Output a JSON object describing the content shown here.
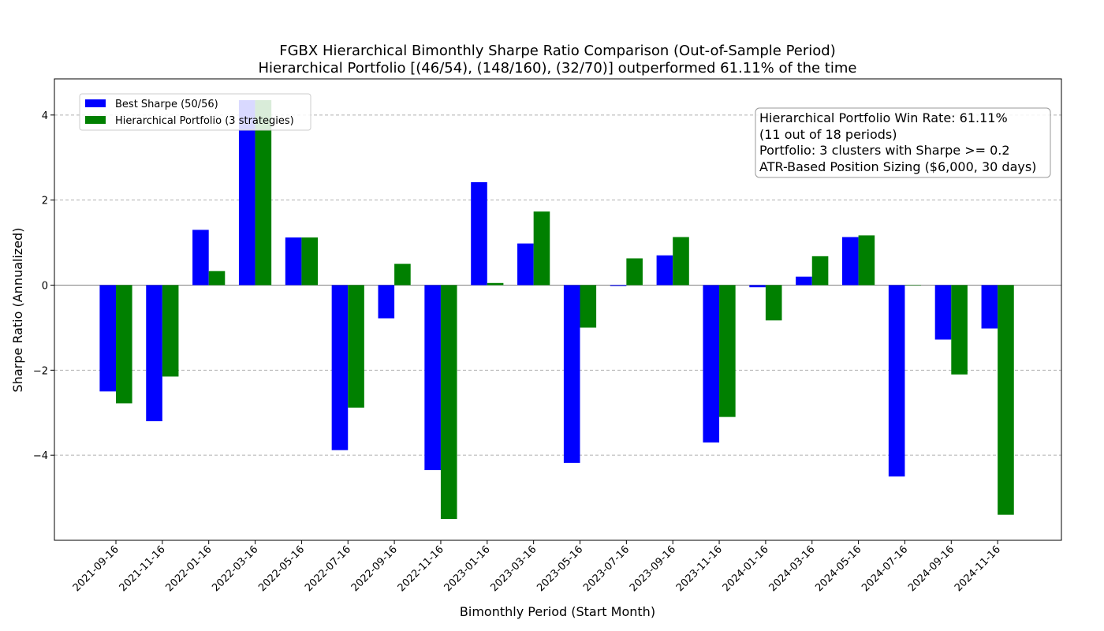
{
  "chart_data": {
    "type": "bar",
    "title": "FGBX Hierarchical Bimonthly Sharpe Ratio Comparison (Out-of-Sample Period)",
    "subtitle": "Hierarchical Portfolio [(46/54), (148/160), (32/70)] outperformed 61.11% of the time",
    "xlabel": "Bimonthly Period (Start Month)",
    "ylabel": "Sharpe Ratio (Annualized)",
    "ylim": [
      -6.0,
      4.85
    ],
    "yticks": [
      -4,
      -2,
      0,
      2,
      4
    ],
    "ytick_labels": [
      "−4",
      "−2",
      "0",
      "2",
      "4"
    ],
    "grid": "horizontal dashed",
    "legend_position": "top-left",
    "categories": [
      "2021-09-16",
      "2021-11-16",
      "2022-01-16",
      "2022-03-16",
      "2022-05-16",
      "2022-07-16",
      "2022-09-16",
      "2022-11-16",
      "2023-01-16",
      "2023-03-16",
      "2023-05-16",
      "2023-07-16",
      "2023-09-16",
      "2023-11-16",
      "2024-01-16",
      "2024-03-16",
      "2024-05-16",
      "2024-07-16",
      "2024-09-16",
      "2024-11-16"
    ],
    "series": [
      {
        "name": "Best Sharpe (50/56)",
        "color": "#0000ff",
        "values": [
          -2.5,
          -3.2,
          1.3,
          4.35,
          1.12,
          -3.88,
          -0.78,
          -4.35,
          2.42,
          0.98,
          -4.18,
          -0.02,
          0.7,
          -3.7,
          -0.05,
          0.2,
          1.13,
          -4.5,
          -1.28,
          -1.02
        ]
      },
      {
        "name": "Hierarchical Portfolio (3 strategies)",
        "color": "#008000",
        "values": [
          -2.78,
          -2.15,
          0.33,
          4.35,
          1.12,
          -2.88,
          0.5,
          -5.5,
          0.05,
          1.73,
          -1.0,
          0.63,
          1.13,
          -3.1,
          -0.83,
          0.68,
          1.17,
          -0.01,
          -2.1,
          -5.4
        ]
      }
    ],
    "annotation": {
      "lines": [
        "Hierarchical Portfolio Win Rate: 61.11%",
        "(11 out of 18 periods)",
        "Portfolio: 3 clusters with Sharpe >= 0.2",
        "ATR-Based Position Sizing ($6,000, 30 days)"
      ],
      "position": "top-right"
    }
  }
}
